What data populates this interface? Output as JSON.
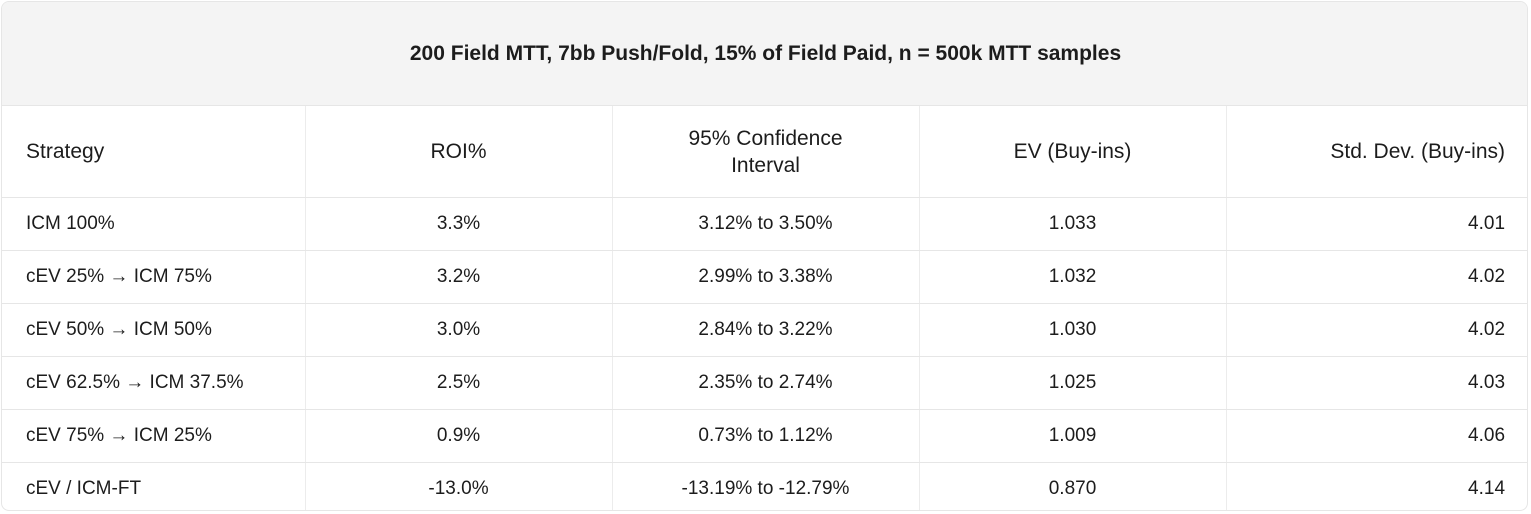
{
  "title": "200 Field MTT, 7bb Push/Fold, 15% of Field Paid, n = 500k MTT samples",
  "columns": {
    "strategy": "Strategy",
    "roi": "ROI%",
    "ci_line1": "95% Confidence",
    "ci_line2": "Interval",
    "ev": "EV (Buy-ins)",
    "std": "Std. Dev. (Buy-ins)"
  },
  "rows": [
    {
      "strategy": "ICM 100%",
      "roi": "3.3%",
      "ci": "3.12% to 3.50%",
      "ev": "1.033",
      "std": "4.01"
    },
    {
      "strategy": "cEV 25% → ICM 75%",
      "roi": "3.2%",
      "ci": "2.99% to 3.38%",
      "ev": "1.032",
      "std": "4.02"
    },
    {
      "strategy": "cEV 50% → ICM 50%",
      "roi": "3.0%",
      "ci": "2.84% to 3.22%",
      "ev": "1.030",
      "std": "4.02"
    },
    {
      "strategy": "cEV 62.5% → ICM 37.5%",
      "roi": "2.5%",
      "ci": "2.35% to 2.74%",
      "ev": "1.025",
      "std": "4.03"
    },
    {
      "strategy": "cEV 75% → ICM 25%",
      "roi": "0.9%",
      "ci": "0.73% to 1.12%",
      "ev": "1.009",
      "std": "4.06"
    },
    {
      "strategy": "cEV / ICM-FT",
      "roi": "-13.0%",
      "ci": "-13.19% to -12.79%",
      "ev": "0.870",
      "std": "4.14"
    }
  ]
}
